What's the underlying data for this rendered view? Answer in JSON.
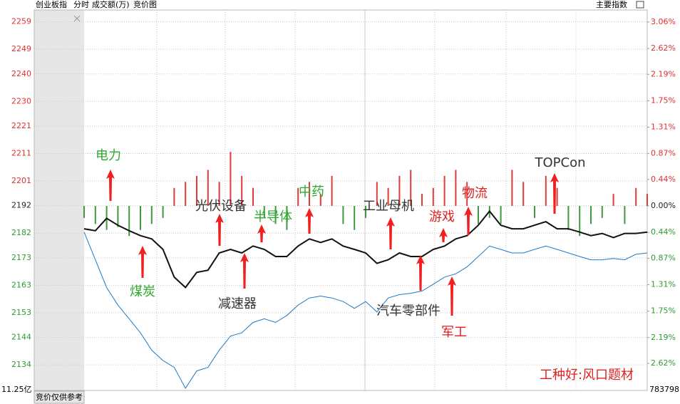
{
  "chart_data": {
    "type": "line",
    "title": "创业板指",
    "tabs": [
      "分时",
      "成交额(万)",
      "竞价图"
    ],
    "menu": "主要指数",
    "auction_note": "竞价仅供参考",
    "bottom_left_label": "11.25亿",
    "bottom_right_label": "783798",
    "ylim": [
      2124.7,
      2263.3
    ],
    "yticks": [
      2259,
      2249,
      2240,
      2230,
      2221,
      2211,
      2201,
      2192,
      2182,
      2173,
      2163,
      2153,
      2144,
      2134
    ],
    "y2lim": [
      -3.07,
      3.26
    ],
    "y2ticks": [
      {
        "value": 3.06,
        "label": "3.06%"
      },
      {
        "value": 2.62,
        "label": "2.62%"
      },
      {
        "value": 2.19,
        "label": "2.19%"
      },
      {
        "value": 1.75,
        "label": "1.75%"
      },
      {
        "value": 1.31,
        "label": "1.31%"
      },
      {
        "value": 0.87,
        "label": "0.87%"
      },
      {
        "value": 0.44,
        "label": "0.44%"
      },
      {
        "value": 0,
        "label": "0.00%"
      },
      {
        "value": -0.44,
        "label": "0.44%"
      },
      {
        "value": -0.87,
        "label": "0.87%"
      },
      {
        "value": -1.31,
        "label": "1.31%"
      },
      {
        "value": -1.75,
        "label": "1.75%"
      },
      {
        "value": -2.19,
        "label": "2.19%"
      },
      {
        "value": -2.62,
        "label": "2.62%"
      }
    ],
    "grid": true,
    "series": [
      {
        "color": "#111111",
        "values": [
          2183.6,
          2182.9,
          2187.4,
          2184.9,
          2182.9,
          2181.1,
          2179.9,
          2176.1,
          2166.0,
          2162.2,
          2167.7,
          2168.5,
          2174.8,
          2176.1,
          2174.8,
          2177.3,
          2176.1,
          2173.5,
          2173.5,
          2177.3,
          2179.9,
          2178.6,
          2179.9,
          2177.3,
          2176.1,
          2174.8,
          2171.0,
          2172.3,
          2174.8,
          2173.5,
          2173.5,
          2176.1,
          2177.3,
          2179.9,
          2181.1,
          2184.9,
          2190.0,
          2184.9,
          2183.6,
          2183.6,
          2184.9,
          2186.2,
          2183.6,
          2183.6,
          2182.4,
          2181.1,
          2181.9,
          2180.4,
          2181.9,
          2181.9,
          2182.4
        ]
      },
      {
        "color": "#1f78c8",
        "values": [
          2182.4,
          2172.3,
          2162.2,
          2155.8,
          2150.8,
          2145.7,
          2139.4,
          2135.6,
          2133.1,
          2125.5,
          2131.8,
          2133.1,
          2139.4,
          2144.5,
          2145.7,
          2149.5,
          2150.8,
          2149.5,
          2152.0,
          2155.8,
          2158.4,
          2159.1,
          2158.4,
          2157.1,
          2154.6,
          2157.1,
          2153.3,
          2158.4,
          2159.6,
          2160.1,
          2160.9,
          2163.4,
          2166.0,
          2167.2,
          2169.7,
          2173.5,
          2177.3,
          2176.1,
          2174.8,
          2174.8,
          2176.1,
          2177.3,
          2176.1,
          2174.8,
          2173.5,
          2172.3,
          2172.3,
          2172.8,
          2172.3,
          2174.3,
          2174.8
        ]
      }
    ],
    "bars": {
      "axis": "y2",
      "up_color": "#e03a3a",
      "down_color": "#3f9a3f",
      "values": [
        -0.2,
        -0.3,
        -0.4,
        -0.35,
        -0.5,
        -0.4,
        -0.3,
        -0.2,
        0.3,
        0.4,
        0.5,
        0.6,
        0.4,
        0.9,
        0.5,
        0.3,
        -0.2,
        -0.3,
        -0.4,
        0.3,
        0.4,
        0.2,
        0.5,
        -0.3,
        -0.4,
        -0.2,
        0.4,
        0.3,
        0.5,
        0.6,
        0.2,
        0.3,
        0.5,
        0.6,
        0.4,
        -0.3,
        -0.2,
        -0.3,
        0.6,
        0.4,
        -0.2,
        0.5,
        0.3,
        -0.4,
        -0.5,
        -0.3,
        -0.2,
        0.2,
        -0.3,
        0.3,
        0.2
      ]
    },
    "annotations": [
      {
        "text": "电力",
        "color": "#2ea82e"
      },
      {
        "text": "煤炭",
        "color": "#2ea82e"
      },
      {
        "text": "光伏设备",
        "color": "#333333"
      },
      {
        "text": "减速器",
        "color": "#333333"
      },
      {
        "text": "半导体",
        "color": "#2ea82e"
      },
      {
        "text": "中药",
        "color": "#2ea82e"
      },
      {
        "text": "工业母机",
        "color": "#333333"
      },
      {
        "text": "汽车零部件",
        "color": "#333333"
      },
      {
        "text": "游戏",
        "color": "#e02020"
      },
      {
        "text": "物流",
        "color": "#e02020"
      },
      {
        "text": "军工",
        "color": "#e02020"
      },
      {
        "text": "TOPCon",
        "color": "#333333"
      },
      {
        "text": "工种好:风口题材",
        "color": "#e02020"
      }
    ]
  }
}
